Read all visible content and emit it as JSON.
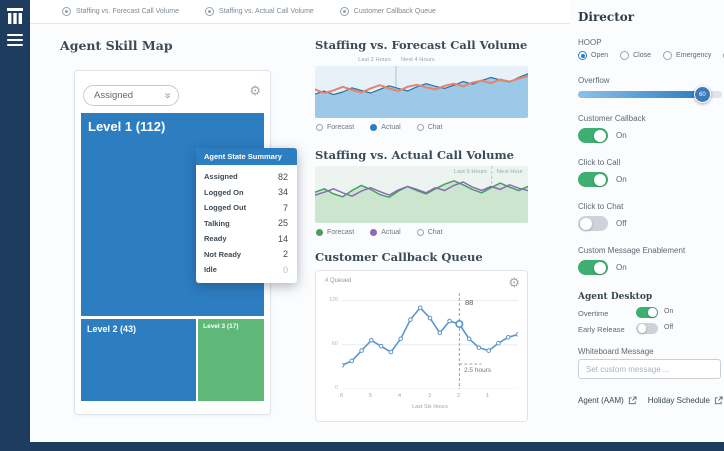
{
  "colors": {
    "navy": "#1d3c5e",
    "accent_blue": "#2d7dc1",
    "treemap_green": "#5fb878",
    "orange": "#e8836b",
    "green_line": "#44a05c",
    "purple_line": "#8a6bb8",
    "callback_blue": "#5a96cd",
    "toggle_green": "#3fae73"
  },
  "topbar": {
    "items": [
      {
        "label": "Staffing vs. Forecast Call Volume"
      },
      {
        "label": "Staffing vs. Actual Call Volume"
      },
      {
        "label": "Customer Callback Queue"
      }
    ]
  },
  "skill_map": {
    "title": "Agent Skill Map",
    "filter_label": "Assigned",
    "levels": [
      {
        "label": "Level 1 (112)"
      },
      {
        "label": "Level 2 (43)"
      },
      {
        "label": "Level 3 (17)"
      }
    ],
    "tooltip": {
      "title": "Agent State Summary",
      "rows": [
        {
          "label": "Assigned",
          "value": "82"
        },
        {
          "label": "Logged On",
          "value": "34"
        },
        {
          "label": "Logged Out",
          "value": "7"
        },
        {
          "label": "Talking",
          "value": "25"
        },
        {
          "label": "Ready",
          "value": "14"
        },
        {
          "label": "Not Ready",
          "value": "2"
        },
        {
          "label": "Idle",
          "value": "0"
        }
      ]
    }
  },
  "chart_data": [
    {
      "id": "forecast",
      "type": "area",
      "title": "Staffing vs. Forecast Call Volume",
      "x_range_labels": [
        "Last 2 Hours",
        "Next 4 Hours"
      ],
      "ymin": 0,
      "ymax": 100,
      "dividers": [
        {
          "x": 0.38,
          "dashed": false
        }
      ],
      "series": [
        {
          "name": "Actual",
          "color": "#2b6f9f",
          "fill": "#9cc9e8",
          "width": 1.2,
          "values": [
            46,
            52,
            45,
            50,
            58,
            53,
            48,
            55,
            62,
            57,
            52,
            60,
            66,
            61,
            57,
            63,
            70,
            65,
            72,
            78,
            73,
            69,
            78,
            85
          ]
        },
        {
          "name": "Forecast",
          "color": "#e8836b",
          "width": 2,
          "values": [
            55,
            48,
            53,
            60,
            54,
            49,
            57,
            63,
            57,
            52,
            60,
            64,
            59,
            55,
            62,
            66,
            61,
            68,
            72,
            67,
            74,
            70,
            76,
            81
          ]
        }
      ],
      "legend": [
        {
          "label": "Forecast",
          "dot": "outline"
        },
        {
          "label": "Actual",
          "dot": "#2d7dc1"
        },
        {
          "label": "Chat",
          "dot": "outline"
        }
      ]
    },
    {
      "id": "actual",
      "type": "area",
      "title": "Staffing vs. Actual Call Volume",
      "x_range_labels": [
        "Last 5 Hours",
        "Next Hour"
      ],
      "ymin": 0,
      "ymax": 100,
      "dividers": [
        {
          "x": 0.83,
          "dashed": true
        }
      ],
      "series": [
        {
          "name": "Forecast",
          "color": "#44a05c",
          "fill": "#cbe5cf",
          "width": 1.5,
          "values": [
            54,
            60,
            51,
            46,
            57,
            66,
            59,
            50,
            45,
            56,
            64,
            57,
            51,
            60,
            68,
            74,
            67,
            59,
            53,
            62,
            70,
            63,
            57,
            64
          ]
        },
        {
          "name": "Actual",
          "color": "#8a6bb8",
          "width": 1.5,
          "values": [
            49,
            54,
            60,
            53,
            47,
            56,
            62,
            55,
            49,
            58,
            64,
            59,
            53,
            62,
            57,
            66,
            72,
            63,
            57,
            64,
            59,
            67,
            61,
            57
          ]
        }
      ],
      "legend": [
        {
          "label": "Forecast",
          "dot": "#44a05c"
        },
        {
          "label": "Actual",
          "dot": "#8a6bb8"
        },
        {
          "label": "Chat",
          "dot": "outline"
        }
      ]
    },
    {
      "id": "callback",
      "type": "line",
      "title": "Customer Callback Queue",
      "ylabel": "# Queued",
      "xlabel": "Last Six Hours",
      "x_ticks": [
        "6",
        "5",
        "4",
        "3",
        "2",
        "1"
      ],
      "y_ticks": [
        "120",
        "60",
        "0"
      ],
      "gridlines": [
        120,
        60,
        0
      ],
      "ymin": 0,
      "ymax": 130,
      "series": [
        {
          "name": "Queued",
          "color": "#5a96cd",
          "width": 1.6,
          "dots": true,
          "values": [
            32,
            38,
            52,
            66,
            58,
            50,
            68,
            94,
            110,
            96,
            76,
            92,
            88,
            68,
            56,
            52,
            62,
            70,
            74
          ]
        }
      ],
      "highlight": {
        "index": 12,
        "value": "88",
        "time_label": "2.5 hours"
      }
    }
  ],
  "director": {
    "title": "Director",
    "hoop": {
      "label": "HOOP",
      "options": [
        {
          "label": "Open",
          "selected": true
        },
        {
          "label": "Close",
          "selected": false
        },
        {
          "label": "Emergency",
          "selected": false
        },
        {
          "label": "",
          "selected": false
        }
      ]
    },
    "overflow": {
      "label": "Overflow",
      "value": "60"
    },
    "toggles": [
      {
        "label": "Customer Callback",
        "state": "On"
      },
      {
        "label": "Click to Call",
        "state": "On"
      },
      {
        "label": "Click to Chat",
        "state": "Off"
      },
      {
        "label": "Custom Message Enablement",
        "state": "On"
      }
    ],
    "agent_desktop": {
      "label": "Agent Desktop",
      "rows": [
        {
          "label": "Overtime",
          "state": "On"
        },
        {
          "label": "Early Release",
          "state": "Off"
        }
      ]
    },
    "whiteboard": {
      "label": "Whiteboard Message",
      "placeholder": "Set custom message ..."
    },
    "links": [
      {
        "label": "Agent (AAM)"
      },
      {
        "label": "Holiday Schedule"
      }
    ]
  }
}
